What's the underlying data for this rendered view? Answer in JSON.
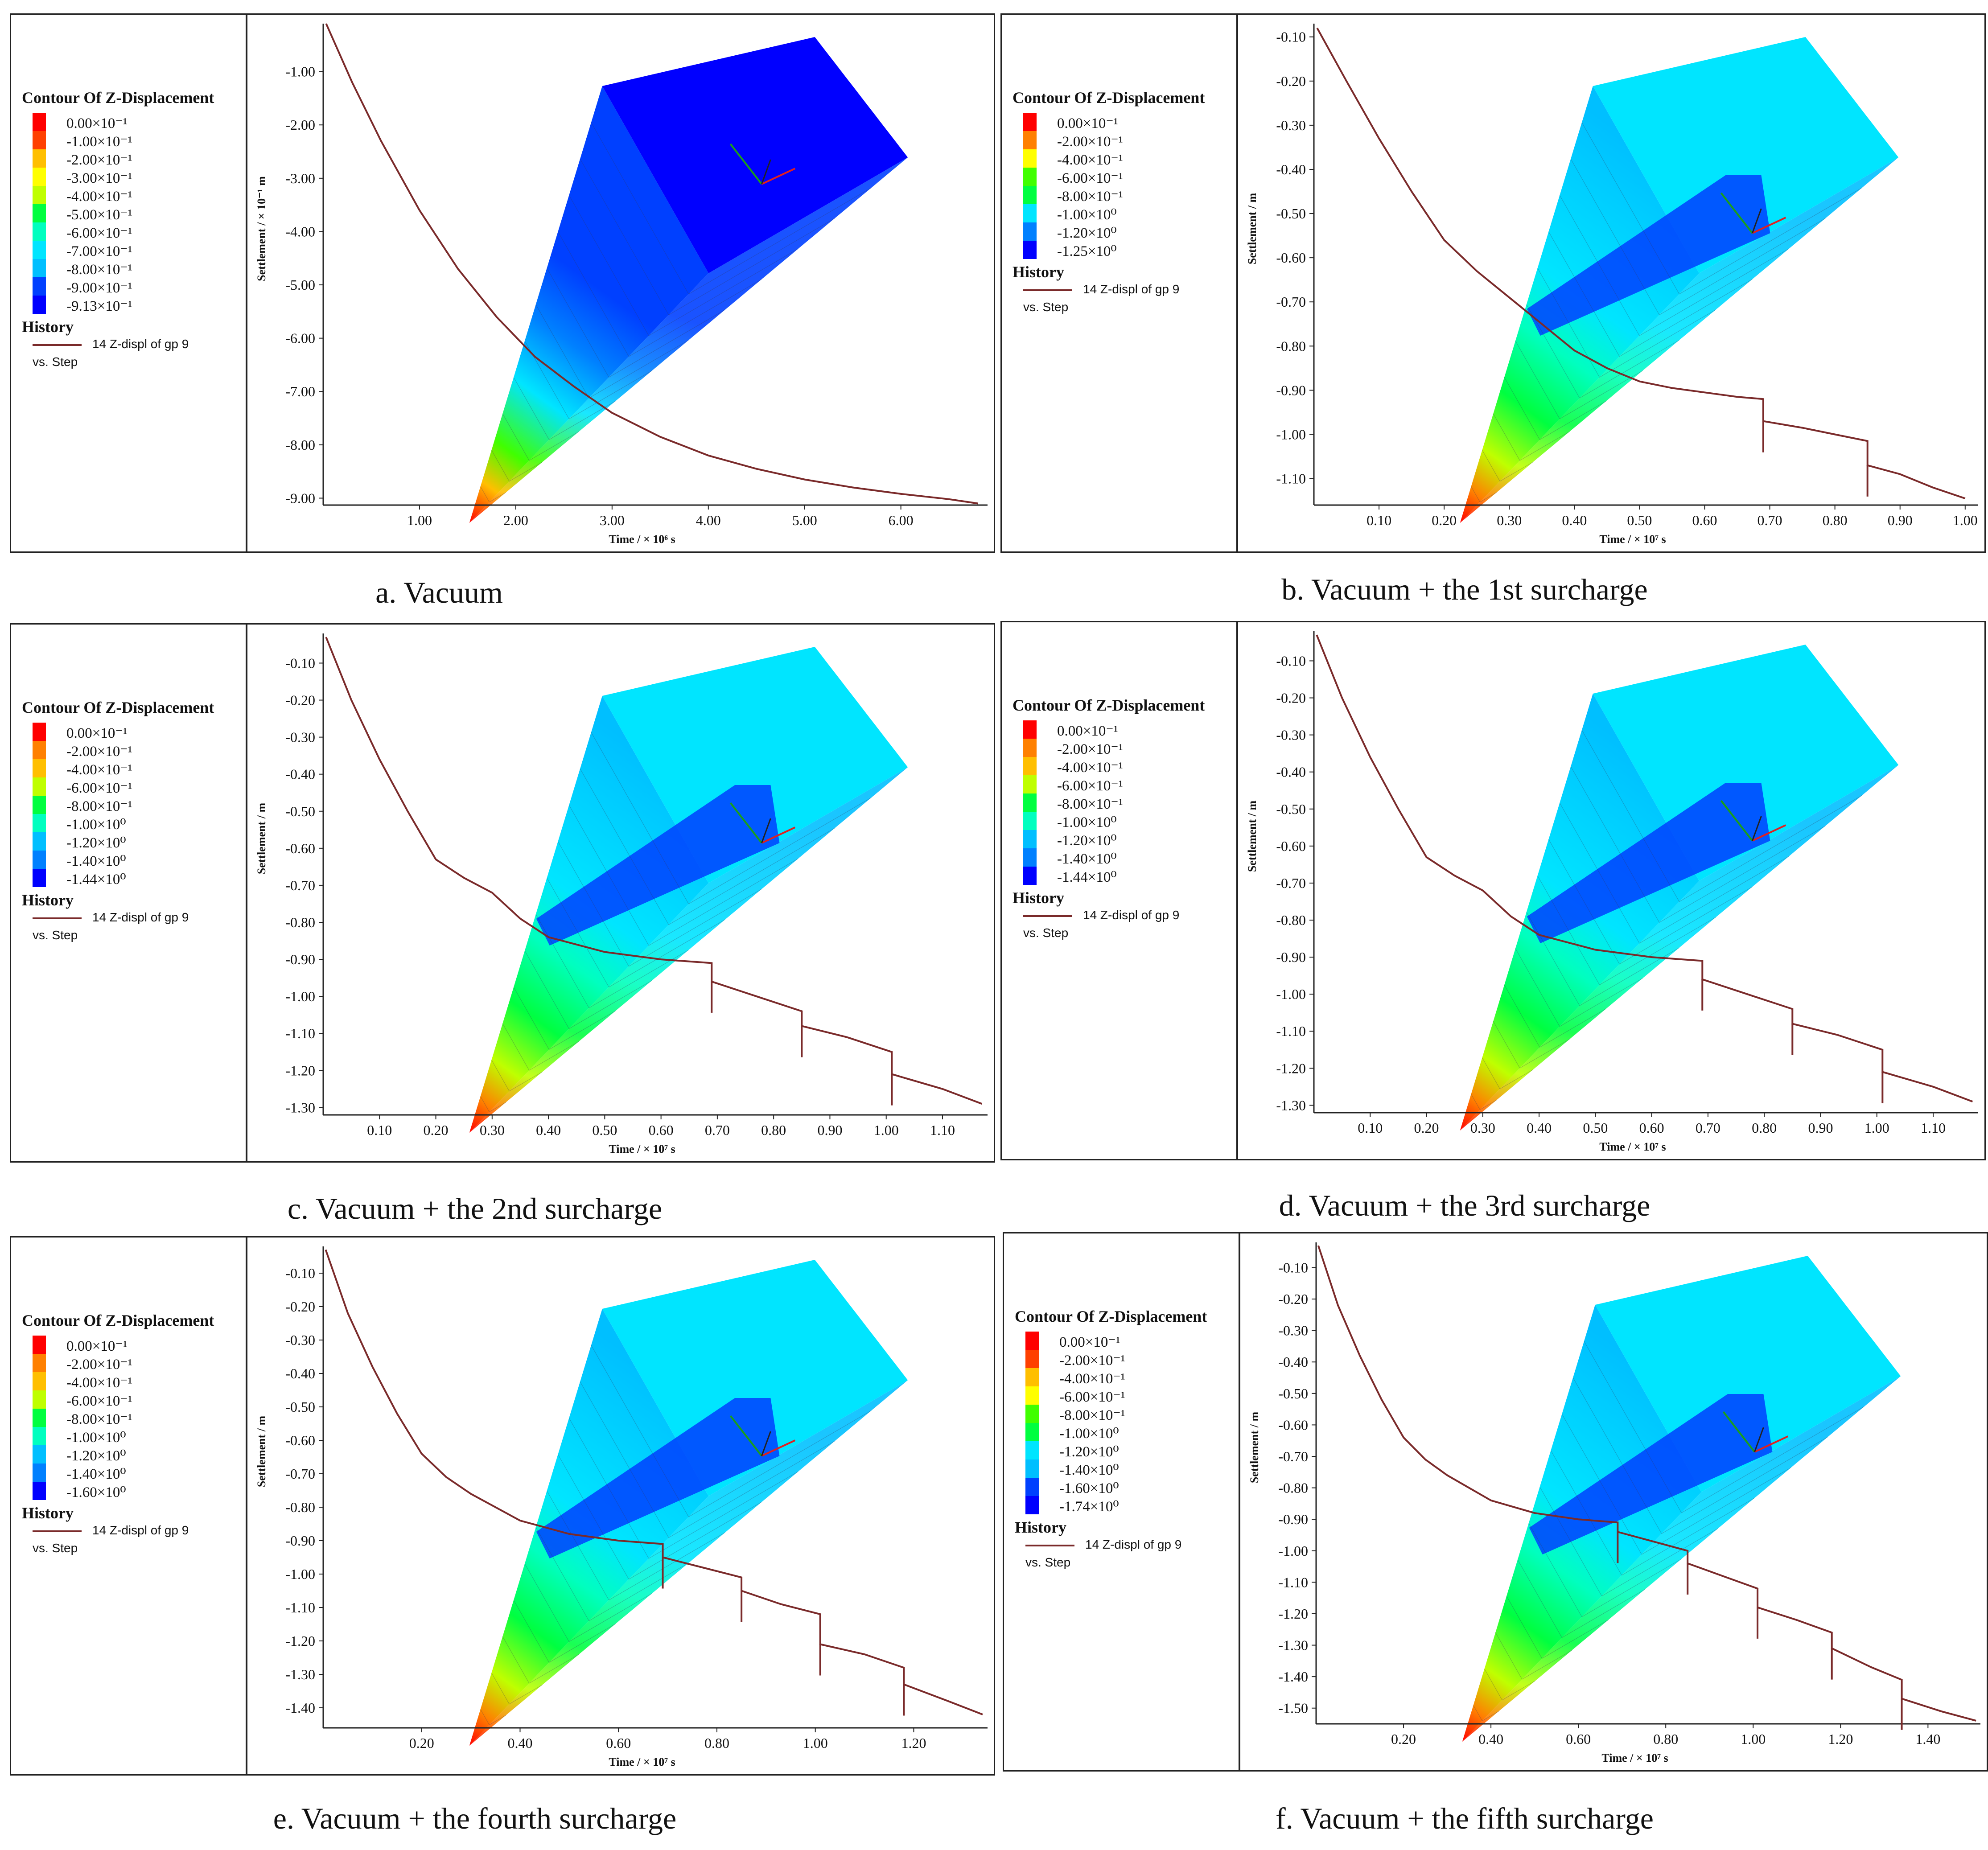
{
  "colors": {
    "curve": "#7a2a2a",
    "contour": [
      "#ff0000",
      "#ff4000",
      "#ff8000",
      "#ffbf00",
      "#ffff00",
      "#bfff00",
      "#40ff00",
      "#00ff40",
      "#00ffbf",
      "#00e5ff",
      "#00bfff",
      "#0080ff",
      "#0040ff",
      "#0000ff"
    ]
  },
  "legend_title": "Contour Of Z-Displacement",
  "history_title": "History",
  "history_series": "14 Z-displ of gp 9",
  "history_sub": "vs. Step",
  "time_label_a": "Time / × 10⁶ s",
  "time_label_b": "Time / × 10⁷ s",
  "panels": [
    {
      "caption": "a. Vacuum",
      "legend": [
        "0.00×10⁻¹",
        "-1.00×10⁻¹",
        "-2.00×10⁻¹",
        "-3.00×10⁻¹",
        "-4.00×10⁻¹",
        "-5.00×10⁻¹",
        "-6.00×10⁻¹",
        "-7.00×10⁻¹",
        "-8.00×10⁻¹",
        "-9.00×10⁻¹",
        "-9.13×10⁻¹"
      ],
      "chart_data": {
        "type": "line",
        "title": "",
        "xlabel": "Time / × 10⁶ s",
        "ylabel": "Settlement / × 10⁻¹ m",
        "xlim": [
          0,
          6.9
        ],
        "ylim": [
          -9.13,
          -0.1
        ],
        "xticks": [
          1.0,
          2.0,
          3.0,
          4.0,
          5.0,
          6.0
        ],
        "xtick_labels": [
          "1.00",
          "2.00",
          "3.00",
          "4.00",
          "5.00",
          "6.00"
        ],
        "yticks": [
          -1,
          -2,
          -3,
          -4,
          -5,
          -6,
          -7,
          -8,
          -9
        ],
        "ytick_labels": [
          "-1.00",
          "-2.00",
          "-3.00",
          "-4.00",
          "-5.00",
          "-6.00",
          "-7.00",
          "-8.00",
          "-9.00"
        ],
        "x": [
          0.03,
          0.3,
          0.6,
          1.0,
          1.4,
          1.8,
          2.2,
          2.6,
          3.0,
          3.5,
          4.0,
          4.5,
          5.0,
          5.5,
          6.0,
          6.5,
          6.8
        ],
        "y": [
          -0.1,
          -1.2,
          -2.3,
          -3.6,
          -4.7,
          -5.6,
          -6.35,
          -6.9,
          -7.4,
          -7.85,
          -8.2,
          -8.45,
          -8.65,
          -8.8,
          -8.92,
          -9.02,
          -9.1
        ]
      },
      "surcharge_steps": []
    },
    {
      "caption": "b. Vacuum + the 1st surcharge",
      "legend": [
        "0.00×10⁻¹",
        "-2.00×10⁻¹",
        "-4.00×10⁻¹",
        "-6.00×10⁻¹",
        "-8.00×10⁻¹",
        "-1.00×10⁰",
        "-1.20×10⁰",
        "-1.25×10⁰"
      ],
      "chart_data": {
        "type": "line",
        "title": "",
        "xlabel": "Time / × 10⁷ s",
        "ylabel": "Settlement / m",
        "xlim": [
          0,
          1.02
        ],
        "ylim": [
          -1.16,
          -0.07
        ],
        "xticks": [
          0.1,
          0.2,
          0.3,
          0.4,
          0.5,
          0.6,
          0.7,
          0.8,
          0.9,
          1.0
        ],
        "xtick_labels": [
          "0.10",
          "0.20",
          "0.30",
          "0.40",
          "0.50",
          "0.60",
          "0.70",
          "0.80",
          "0.90",
          "1.00"
        ],
        "yticks": [
          -0.1,
          -0.2,
          -0.3,
          -0.4,
          -0.5,
          -0.6,
          -0.7,
          -0.8,
          -0.9,
          -1.0,
          -1.1
        ],
        "ytick_labels": [
          "-0.10",
          "-0.20",
          "-0.30",
          "-0.40",
          "-0.50",
          "-0.60",
          "-0.70",
          "-0.80",
          "-0.90",
          "-1.00",
          "-1.10"
        ],
        "x": [
          0.005,
          0.05,
          0.1,
          0.15,
          0.2,
          0.25,
          0.3,
          0.35,
          0.4,
          0.45,
          0.5,
          0.55,
          0.6,
          0.65,
          0.69,
          0.69,
          0.75,
          0.8,
          0.85,
          0.85,
          0.9,
          0.95,
          1.0
        ],
        "y": [
          -0.08,
          -0.2,
          -0.33,
          -0.45,
          -0.56,
          -0.63,
          -0.69,
          -0.75,
          -0.81,
          -0.85,
          -0.88,
          -0.895,
          -0.905,
          -0.915,
          -0.92,
          -0.97,
          -0.985,
          -1.0,
          -1.015,
          -1.07,
          -1.09,
          -1.12,
          -1.145
        ]
      },
      "surcharge_steps": [
        0.69,
        0.85
      ]
    },
    {
      "caption": "c. Vacuum + the 2nd surcharge",
      "legend": [
        "0.00×10⁻¹",
        "-2.00×10⁻¹",
        "-4.00×10⁻¹",
        "-6.00×10⁻¹",
        "-8.00×10⁻¹",
        "-1.00×10⁰",
        "-1.20×10⁰",
        "-1.40×10⁰",
        "-1.44×10⁰"
      ],
      "chart_data": {
        "type": "line",
        "title": "",
        "xlabel": "Time / × 10⁷ s",
        "ylabel": "Settlement / m",
        "xlim": [
          0,
          1.18
        ],
        "ylim": [
          -1.32,
          -0.02
        ],
        "xticks": [
          0.1,
          0.2,
          0.3,
          0.4,
          0.5,
          0.6,
          0.7,
          0.8,
          0.9,
          1.0,
          1.1
        ],
        "xtick_labels": [
          "0.10",
          "0.20",
          "0.30",
          "0.40",
          "0.50",
          "0.60",
          "0.70",
          "0.80",
          "0.90",
          "1.00",
          "1.10"
        ],
        "yticks": [
          -0.1,
          -0.2,
          -0.3,
          -0.4,
          -0.5,
          -0.6,
          -0.7,
          -0.8,
          -0.9,
          -1.0,
          -1.1,
          -1.2,
          -1.3
        ],
        "ytick_labels": [
          "-0.10",
          "-0.20",
          "-0.30",
          "-0.40",
          "-0.50",
          "-0.60",
          "-0.70",
          "-0.80",
          "-0.90",
          "-1.00",
          "-1.10",
          "-1.20",
          "-1.30"
        ],
        "x": [
          0.005,
          0.05,
          0.1,
          0.15,
          0.2,
          0.25,
          0.3,
          0.35,
          0.4,
          0.5,
          0.6,
          0.69,
          0.69,
          0.77,
          0.85,
          0.85,
          0.93,
          1.01,
          1.01,
          1.1,
          1.17
        ],
        "y": [
          -0.03,
          -0.2,
          -0.36,
          -0.5,
          -0.63,
          -0.68,
          -0.72,
          -0.79,
          -0.84,
          -0.88,
          -0.9,
          -0.91,
          -0.96,
          -1.0,
          -1.04,
          -1.08,
          -1.11,
          -1.15,
          -1.21,
          -1.25,
          -1.29
        ]
      },
      "surcharge_steps": [
        0.69,
        0.85,
        1.01
      ]
    },
    {
      "caption": "d. Vacuum + the 3rd surcharge",
      "legend": [
        "0.00×10⁻¹",
        "-2.00×10⁻¹",
        "-4.00×10⁻¹",
        "-6.00×10⁻¹",
        "-8.00×10⁻¹",
        "-1.00×10⁰",
        "-1.20×10⁰",
        "-1.40×10⁰",
        "-1.44×10⁰"
      ],
      "chart_data": {
        "type": "line",
        "title": "",
        "xlabel": "Time / × 10⁷ s",
        "ylabel": "Settlement / m",
        "xlim": [
          0,
          1.18
        ],
        "ylim": [
          -1.32,
          -0.02
        ],
        "xticks": [
          0.1,
          0.2,
          0.3,
          0.4,
          0.5,
          0.6,
          0.7,
          0.8,
          0.9,
          1.0,
          1.1
        ],
        "xtick_labels": [
          "0.10",
          "0.20",
          "0.30",
          "0.40",
          "0.50",
          "0.60",
          "0.70",
          "0.80",
          "0.90",
          "1.00",
          "1.10"
        ],
        "yticks": [
          -0.1,
          -0.2,
          -0.3,
          -0.4,
          -0.5,
          -0.6,
          -0.7,
          -0.8,
          -0.9,
          -1.0,
          -1.1,
          -1.2,
          -1.3
        ],
        "ytick_labels": [
          "-0.10",
          "-0.20",
          "-0.30",
          "-0.40",
          "-0.50",
          "-0.60",
          "-0.70",
          "-0.80",
          "-0.90",
          "-1.00",
          "-1.10",
          "-1.20",
          "-1.30"
        ],
        "x": [
          0.005,
          0.05,
          0.1,
          0.15,
          0.2,
          0.25,
          0.3,
          0.35,
          0.4,
          0.5,
          0.6,
          0.69,
          0.69,
          0.77,
          0.85,
          0.85,
          0.93,
          1.01,
          1.01,
          1.1,
          1.17
        ],
        "y": [
          -0.03,
          -0.2,
          -0.36,
          -0.5,
          -0.63,
          -0.68,
          -0.72,
          -0.79,
          -0.84,
          -0.88,
          -0.9,
          -0.91,
          -0.96,
          -1.0,
          -1.04,
          -1.08,
          -1.11,
          -1.15,
          -1.21,
          -1.25,
          -1.29
        ]
      },
      "surcharge_steps": [
        0.69,
        0.85,
        1.01
      ]
    },
    {
      "caption": "e. Vacuum + the fourth surcharge",
      "legend": [
        "0.00×10⁻¹",
        "-2.00×10⁻¹",
        "-4.00×10⁻¹",
        "-6.00×10⁻¹",
        "-8.00×10⁻¹",
        "-1.00×10⁰",
        "-1.20×10⁰",
        "-1.40×10⁰",
        "-1.60×10⁰"
      ],
      "chart_data": {
        "type": "line",
        "title": "",
        "xlabel": "Time / × 10⁷ s",
        "ylabel": "Settlement / m",
        "xlim": [
          0,
          1.35
        ],
        "ylim": [
          -1.46,
          -0.02
        ],
        "xticks": [
          0.2,
          0.4,
          0.6,
          0.8,
          1.0,
          1.2
        ],
        "xtick_labels": [
          "0.20",
          "0.40",
          "0.60",
          "0.80",
          "1.00",
          "1.20"
        ],
        "yticks": [
          -0.1,
          -0.2,
          -0.3,
          -0.4,
          -0.5,
          -0.6,
          -0.7,
          -0.8,
          -0.9,
          -1.0,
          -1.1,
          -1.2,
          -1.3,
          -1.4
        ],
        "ytick_labels": [
          "-0.10",
          "-0.20",
          "-0.30",
          "-0.40",
          "-0.50",
          "-0.60",
          "-0.70",
          "-0.80",
          "-0.90",
          "-1.00",
          "-1.10",
          "-1.20",
          "-1.30",
          "-1.40"
        ],
        "x": [
          0.005,
          0.05,
          0.1,
          0.15,
          0.2,
          0.25,
          0.3,
          0.35,
          0.4,
          0.5,
          0.6,
          0.69,
          0.69,
          0.77,
          0.85,
          0.85,
          0.93,
          1.01,
          1.01,
          1.1,
          1.18,
          1.18,
          1.27,
          1.34
        ],
        "y": [
          -0.03,
          -0.22,
          -0.38,
          -0.52,
          -0.64,
          -0.71,
          -0.76,
          -0.8,
          -0.84,
          -0.88,
          -0.9,
          -0.91,
          -0.95,
          -0.98,
          -1.01,
          -1.05,
          -1.09,
          -1.12,
          -1.21,
          -1.24,
          -1.28,
          -1.33,
          -1.38,
          -1.42
        ]
      },
      "surcharge_steps": [
        0.69,
        0.85,
        1.01,
        1.18
      ]
    },
    {
      "caption": "f. Vacuum + the fifth surcharge",
      "legend": [
        "0.00×10⁻¹",
        "-2.00×10⁻¹",
        "-4.00×10⁻¹",
        "-6.00×10⁻¹",
        "-8.00×10⁻¹",
        "-1.00×10⁰",
        "-1.20×10⁰",
        "-1.40×10⁰",
        "-1.60×10⁰",
        "-1.74×10⁰"
      ],
      "chart_data": {
        "type": "line",
        "title": "",
        "xlabel": "Time / × 10⁷ s",
        "ylabel": "Settlement / m",
        "xlim": [
          0,
          1.52
        ],
        "ylim": [
          -1.55,
          -0.02
        ],
        "xticks": [
          0.2,
          0.4,
          0.6,
          0.8,
          1.0,
          1.2,
          1.4
        ],
        "xtick_labels": [
          "0.20",
          "0.40",
          "0.60",
          "0.80",
          "1.00",
          "1.20",
          "1.40"
        ],
        "yticks": [
          -0.1,
          -0.2,
          -0.3,
          -0.4,
          -0.5,
          -0.6,
          -0.7,
          -0.8,
          -0.9,
          -1.0,
          -1.1,
          -1.2,
          -1.3,
          -1.4,
          -1.5
        ],
        "ytick_labels": [
          "-0.10",
          "-0.20",
          "-0.30",
          "-0.40",
          "-0.50",
          "-0.60",
          "-0.70",
          "-0.80",
          "-0.90",
          "-1.00",
          "-1.10",
          "-1.20",
          "-1.30",
          "-1.40",
          "-1.50"
        ],
        "x": [
          0.005,
          0.05,
          0.1,
          0.15,
          0.2,
          0.25,
          0.3,
          0.35,
          0.4,
          0.5,
          0.6,
          0.69,
          0.69,
          0.77,
          0.85,
          0.85,
          0.93,
          1.01,
          1.01,
          1.1,
          1.18,
          1.18,
          1.27,
          1.34,
          1.34,
          1.43,
          1.51
        ],
        "y": [
          -0.03,
          -0.22,
          -0.38,
          -0.52,
          -0.64,
          -0.71,
          -0.76,
          -0.8,
          -0.84,
          -0.88,
          -0.9,
          -0.91,
          -0.94,
          -0.97,
          -1.0,
          -1.04,
          -1.08,
          -1.12,
          -1.18,
          -1.22,
          -1.26,
          -1.31,
          -1.37,
          -1.41,
          -1.47,
          -1.51,
          -1.54
        ]
      },
      "surcharge_steps": [
        0.69,
        0.85,
        1.01,
        1.18,
        1.34
      ]
    }
  ]
}
